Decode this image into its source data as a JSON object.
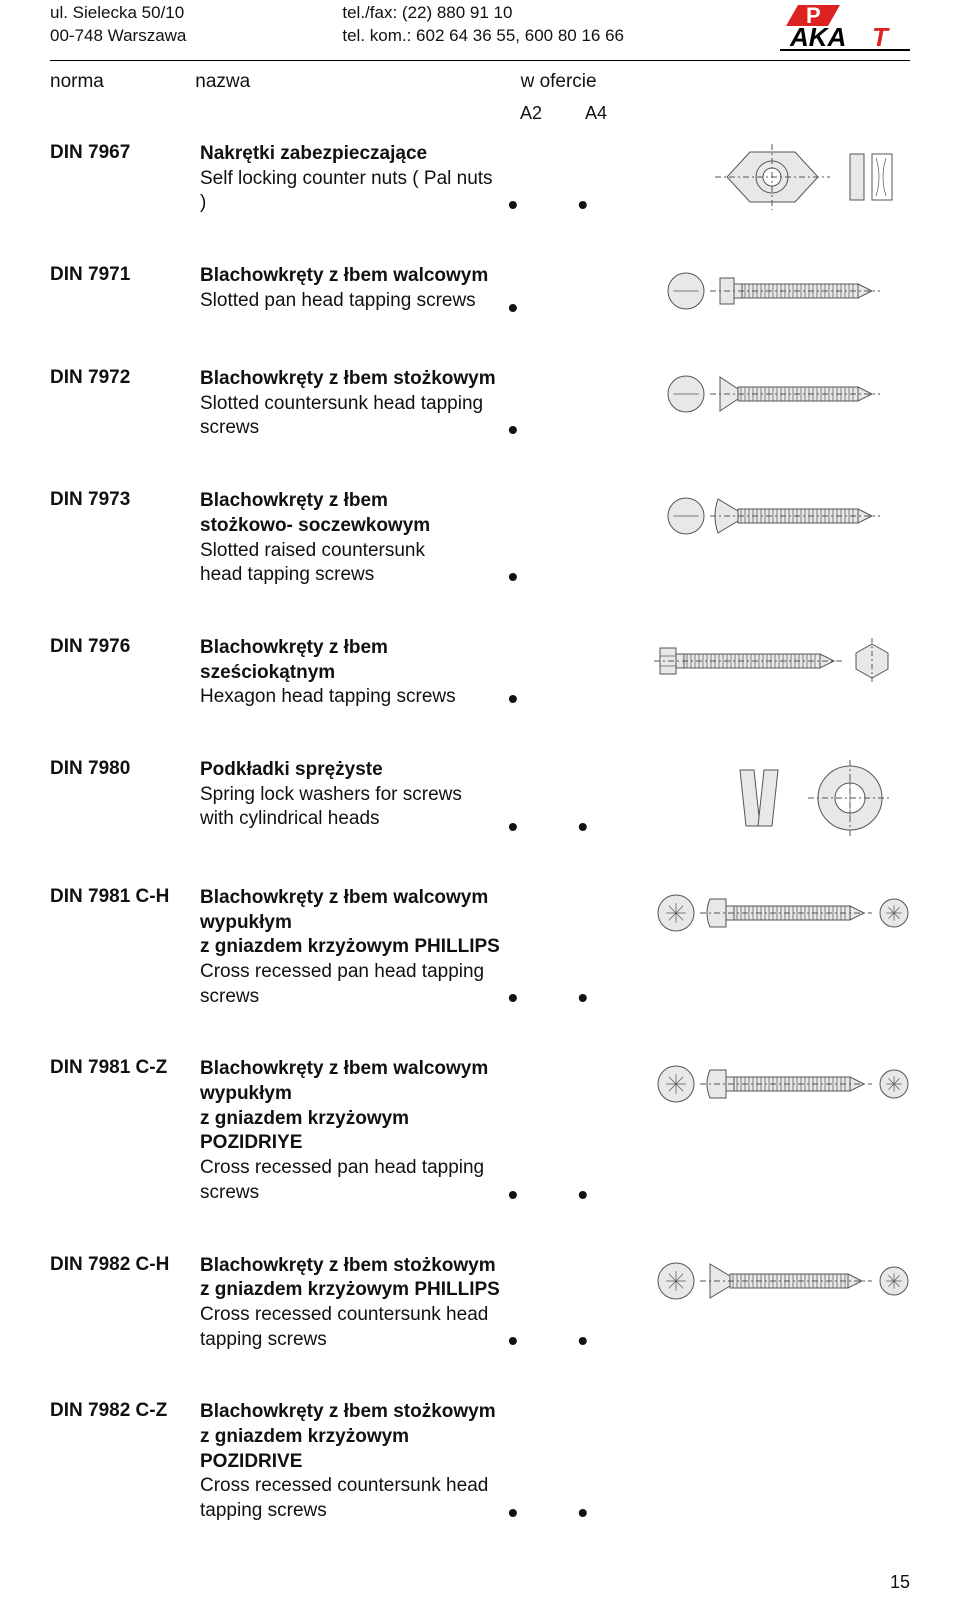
{
  "header": {
    "address_line1": "ul. Sielecka 50/10",
    "address_line2": "00-748 Warszawa",
    "contact_line1": "tel./fax: (22) 880 91 10",
    "contact_line2": "tel. kom.: 602 64 36 55, 600 80 16 66",
    "logo_text_part1": "P",
    "logo_text_part2": "AKA",
    "logo_text_part3": "T",
    "logo_colors": {
      "red": "#d22",
      "black": "#000",
      "gray": "#777"
    }
  },
  "headings": {
    "norma": "norma",
    "nazwa": "nazwa",
    "wofercie": "w ofercie",
    "a2": "A2",
    "a4": "A4"
  },
  "entries": [
    {
      "code": "DIN 7967",
      "title": "Nakrętki zabezpieczające",
      "sub": "Self locking counter nuts ( Pal nuts )",
      "a2": true,
      "a4": true,
      "diagram": "nut"
    },
    {
      "code": "DIN 7971",
      "title": "Blachowkręty z łbem walcowym",
      "sub": "Slotted pan head tapping screws",
      "a2": true,
      "a4": false,
      "diagram": "screw_pan_slotted"
    },
    {
      "code": "DIN 7972",
      "title": "Blachowkręty z łbem stożkowym",
      "sub": "Slotted countersunk head tapping screws",
      "a2": true,
      "a4": false,
      "diagram": "screw_csk_slotted"
    },
    {
      "code": "DIN 7973",
      "title": "Blachowkręty z łbem\nstożkowo- soczewkowym",
      "sub": "Slotted raised countersunk\nhead tapping screws",
      "a2": true,
      "a4": false,
      "diagram": "screw_raised_csk"
    },
    {
      "code": "DIN 7976",
      "title": "Blachowkręty z łbem sześciokątnym",
      "sub": "Hexagon head tapping screws",
      "a2": true,
      "a4": false,
      "diagram": "screw_hex"
    },
    {
      "code": "DIN 7980",
      "title": "Podkładki sprężyste",
      "sub": "Spring lock washers for screws\nwith cylindrical heads",
      "a2": true,
      "a4": true,
      "diagram": "washer"
    },
    {
      "code": "DIN 7981 C-H",
      "title": "Blachowkręty z łbem walcowym wypukłym\nz gniazdem krzyżowym PHILLIPS",
      "sub": "Cross recessed pan head tapping screws",
      "a2": true,
      "a4": true,
      "diagram": "screw_pan_cross"
    },
    {
      "code": "DIN 7981 C-Z",
      "title": "Blachowkręty z łbem walcowym wypukłym\nz gniazdem krzyżowym POZIDRIYE",
      "sub": "Cross recessed pan head tapping screws",
      "a2": true,
      "a4": true,
      "diagram": "screw_pan_cross"
    },
    {
      "code": "DIN 7982 C-H",
      "title": "Blachowkręty z łbem stożkowym\nz gniazdem krzyżowym PHILLIPS",
      "sub": "Cross recessed countersunk head\ntapping screws",
      "a2": true,
      "a4": true,
      "diagram": "screw_csk_cross"
    },
    {
      "code": "DIN 7982 C-Z",
      "title": "Blachowkręty z łbem stożkowym\nz gniazdem krzyżowym POZIDRIVE",
      "sub": "Cross recessed countersunk head\ntapping screws",
      "a2": true,
      "a4": true,
      "diagram": null
    }
  ],
  "footer": {
    "page_number": "15"
  },
  "style": {
    "diagram_stroke": "#555555",
    "diagram_fill": "#e8e8e8",
    "diagram_bg": "#ffffff"
  }
}
